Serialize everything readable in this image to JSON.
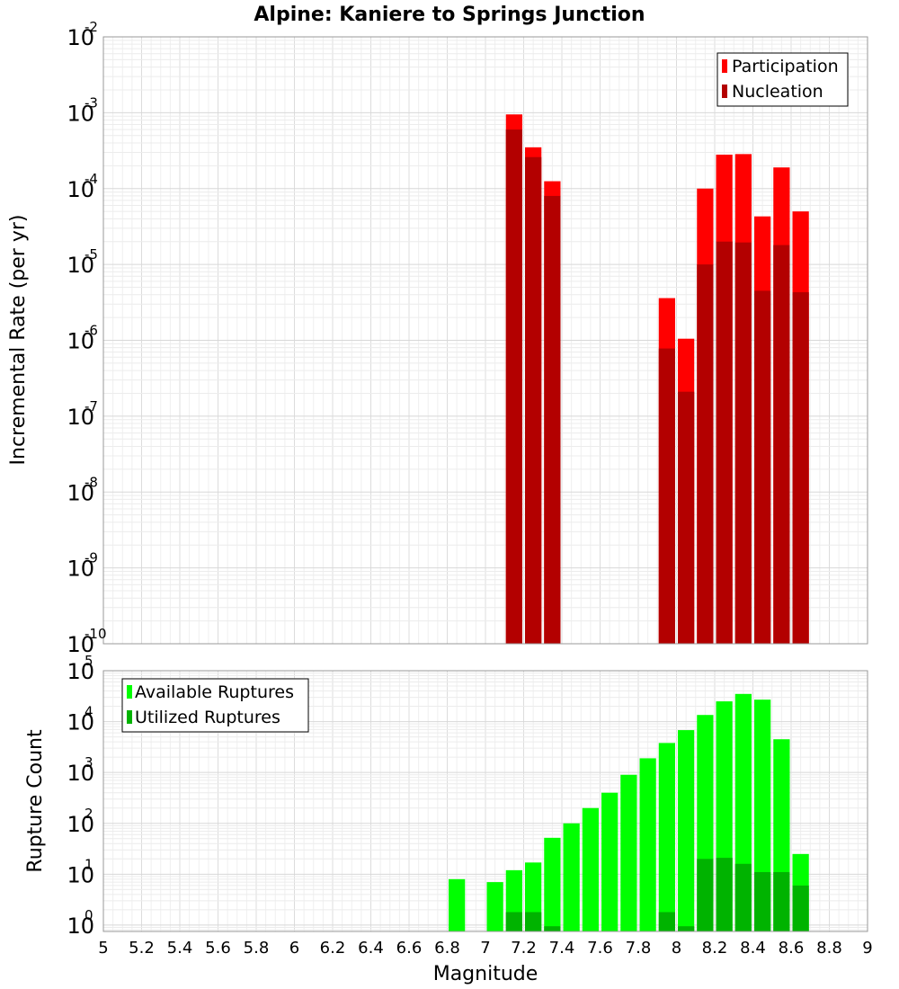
{
  "title": "Alpine: Kaniere to Springs Junction",
  "xlabel": "Magnitude",
  "x_ticks": [
    "5",
    "5.2",
    "5.4",
    "5.6",
    "5.8",
    "6",
    "6.2",
    "6.4",
    "6.6",
    "6.8",
    "7",
    "7.2",
    "7.4",
    "7.6",
    "7.8",
    "8",
    "8.2",
    "8.4",
    "8.6",
    "8.8",
    "9"
  ],
  "colors": {
    "participation": "#ff0000",
    "nucleation": "#b30000",
    "available": "#00ff00",
    "utilized": "#00b300"
  },
  "chart_data": [
    {
      "type": "bar",
      "panel": "top",
      "ylabel": "Incremental Rate (per yr)",
      "yscale": "log",
      "ylim": [
        1e-10,
        0.01
      ],
      "xlim": [
        5,
        9
      ],
      "y_ticks": [
        {
          "base": "10",
          "exp": "-10"
        },
        {
          "base": "10",
          "exp": "-9"
        },
        {
          "base": "10",
          "exp": "-8"
        },
        {
          "base": "10",
          "exp": "-7"
        },
        {
          "base": "10",
          "exp": "-6"
        },
        {
          "base": "10",
          "exp": "-5"
        },
        {
          "base": "10",
          "exp": "-4"
        },
        {
          "base": "10",
          "exp": "-3"
        },
        {
          "base": "10",
          "exp": "-2"
        }
      ],
      "legend_position": "top-right",
      "bin_width": 0.1,
      "series": [
        {
          "name": "Participation",
          "x": [
            7.15,
            7.25,
            7.35,
            7.95,
            8.05,
            8.15,
            8.25,
            8.35,
            8.45,
            8.55,
            8.65
          ],
          "values": [
            0.00095,
            0.00035,
            0.000125,
            3.6e-06,
            1.05e-06,
            0.0001,
            0.00028,
            0.000285,
            4.3e-05,
            0.00019,
            5e-05
          ]
        },
        {
          "name": "Nucleation",
          "x": [
            7.15,
            7.25,
            7.35,
            7.95,
            8.05,
            8.15,
            8.25,
            8.35,
            8.45,
            8.55,
            8.65
          ],
          "values": [
            0.0006,
            0.00026,
            8e-05,
            7.8e-07,
            2.1e-07,
            1e-05,
            2e-05,
            1.95e-05,
            4.5e-06,
            1.8e-05,
            4.3e-06
          ]
        }
      ]
    },
    {
      "type": "bar",
      "panel": "bottom",
      "ylabel": "Rupture Count",
      "yscale": "log",
      "ylim": [
        0.75,
        100000
      ],
      "xlim": [
        5,
        9
      ],
      "y_ticks": [
        {
          "base": "10",
          "exp": "0"
        },
        {
          "base": "10",
          "exp": "1"
        },
        {
          "base": "10",
          "exp": "2"
        },
        {
          "base": "10",
          "exp": "3"
        },
        {
          "base": "10",
          "exp": "4"
        },
        {
          "base": "10",
          "exp": "5"
        }
      ],
      "legend_position": "top-left",
      "bin_width": 0.1,
      "series": [
        {
          "name": "Available Ruptures",
          "x": [
            6.85,
            7.05,
            7.15,
            7.25,
            7.35,
            7.45,
            7.55,
            7.65,
            7.75,
            7.85,
            7.95,
            8.05,
            8.15,
            8.25,
            8.35,
            8.45,
            8.55,
            8.65
          ],
          "values": [
            8,
            7,
            12,
            17,
            52,
            100,
            200,
            400,
            900,
            1900,
            3800,
            6800,
            13500,
            25000,
            35000,
            27000,
            4500,
            25
          ]
        },
        {
          "name": "Utilized Ruptures",
          "x": [
            7.15,
            7.25,
            7.35,
            7.95,
            8.05,
            8.15,
            8.25,
            8.35,
            8.45,
            8.55,
            8.65
          ],
          "values": [
            1.8,
            1.8,
            0.95,
            1.8,
            0.95,
            20,
            21,
            16,
            11,
            11,
            6
          ]
        }
      ]
    }
  ]
}
